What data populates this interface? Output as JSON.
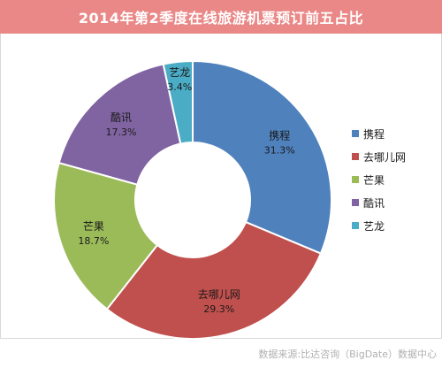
{
  "chart_title": "2014年第2季度在线旅游机票预订前五占比",
  "source_text": "数据来源:比达咨询（BigDate）数据中心",
  "chart_data": {
    "type": "pie",
    "donut": true,
    "title": "2014年第2季度在线旅游机票预订前五占比",
    "legend": "right",
    "slices": [
      {
        "name": "携程",
        "value": 31.3,
        "label": "31.3%",
        "color": "#4f81bd"
      },
      {
        "name": "去哪儿网",
        "value": 29.3,
        "label": "29.3%",
        "color": "#c0504d"
      },
      {
        "name": "芒果",
        "value": 18.7,
        "label": "18.7%",
        "color": "#9bbb59"
      },
      {
        "name": "酷讯",
        "value": 17.3,
        "label": "17.3%",
        "color": "#8064a2"
      },
      {
        "name": "艺龙",
        "value": 3.4,
        "label": "3.4%",
        "color": "#4bacc6"
      }
    ]
  }
}
